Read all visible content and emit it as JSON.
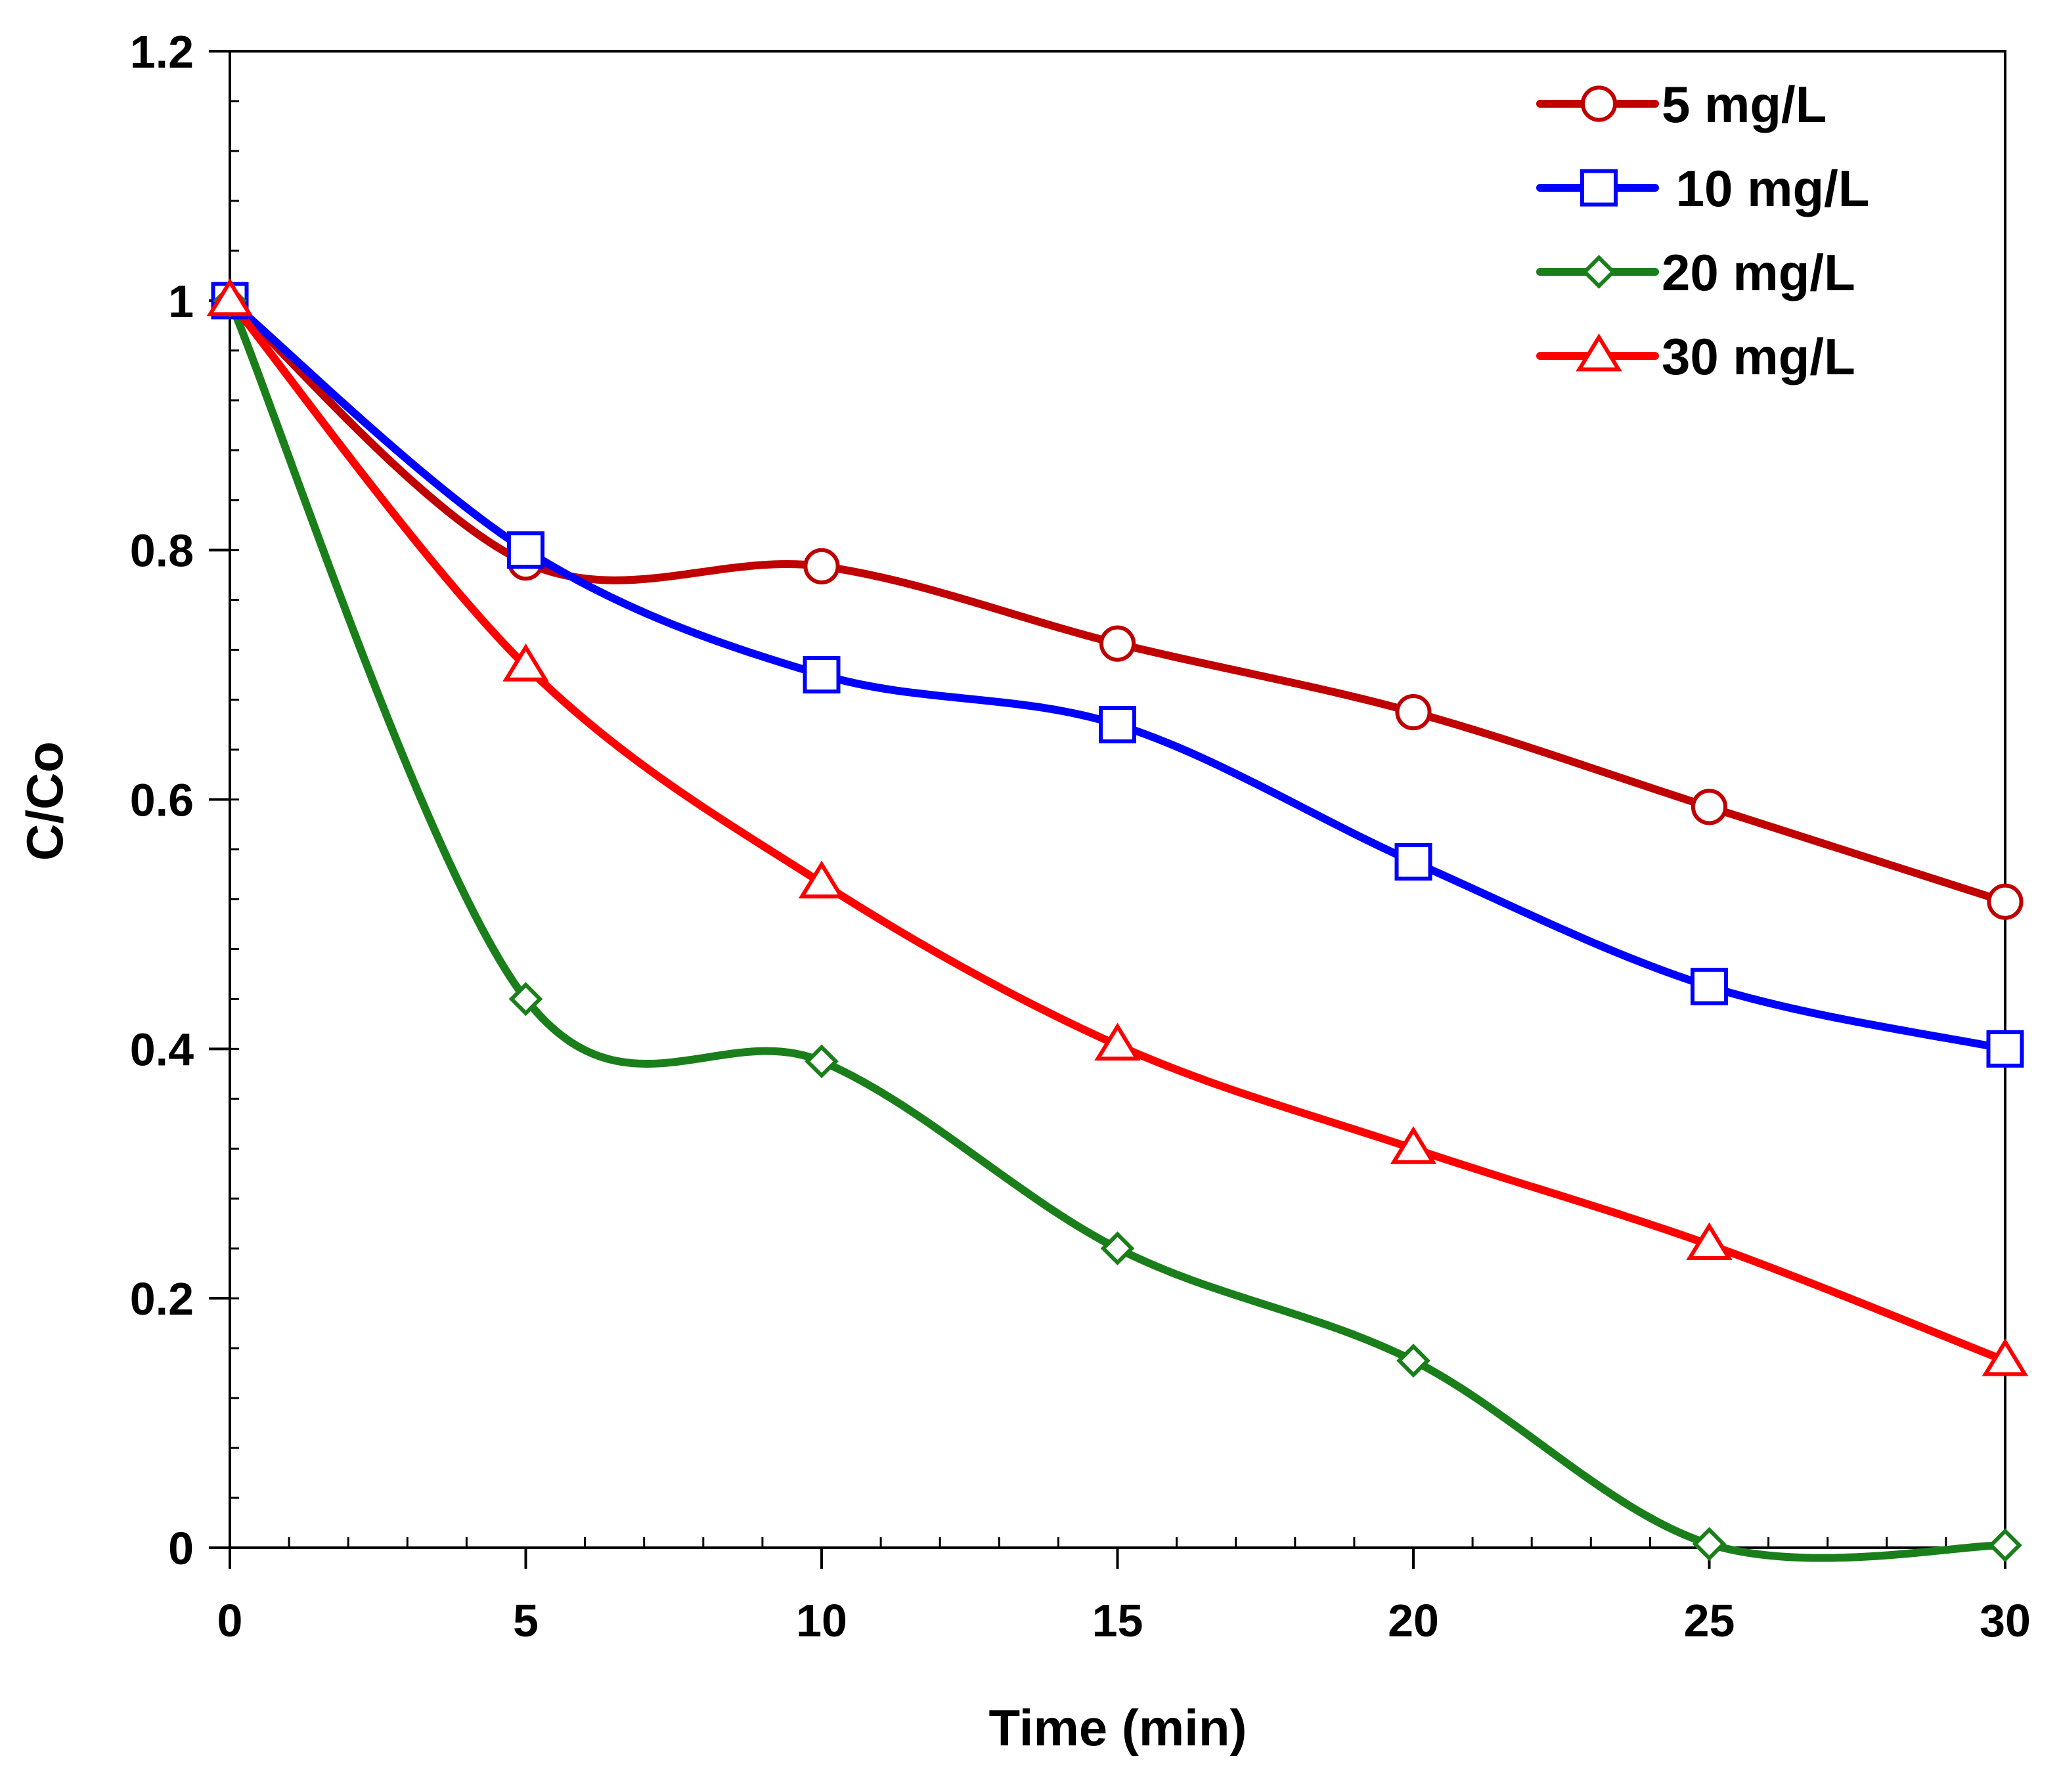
{
  "chart_data": {
    "type": "line",
    "title": "",
    "xlabel": "Time (min)",
    "ylabel": "C/Co",
    "xlim": [
      0,
      30
    ],
    "ylim": [
      0,
      1.2
    ],
    "x_ticks": [
      0,
      5,
      10,
      15,
      20,
      25,
      30
    ],
    "x_tick_labels": [
      "0",
      "5",
      "10",
      "15",
      "20",
      "25",
      "30"
    ],
    "y_ticks": [
      0,
      0.2,
      0.4,
      0.6,
      0.8,
      1,
      1.2
    ],
    "y_tick_labels": [
      "0",
      "0.2",
      "0.4",
      "0.6",
      "0.8",
      "1",
      "1.2"
    ],
    "x_minor_step": 1,
    "y_minor_step": 0.04,
    "grid": false,
    "legend_position": "top-right",
    "smooth": true,
    "x": [
      0,
      5,
      10,
      15,
      20,
      25,
      30
    ],
    "series": [
      {
        "name": "5 mg/L",
        "color": "#c00000",
        "marker": "circle",
        "values": [
          1.0,
          0.79,
          0.787,
          0.725,
          0.67,
          0.594,
          0.518
        ]
      },
      {
        "name": " 10 mg/L",
        "color": "#0000ff",
        "marker": "square",
        "values": [
          1.0,
          0.8,
          0.7,
          0.66,
          0.55,
          0.45,
          0.4
        ]
      },
      {
        "name": "20 mg/L",
        "color": "#1a7f1a",
        "marker": "diamond",
        "values": [
          1.0,
          0.44,
          0.39,
          0.24,
          0.15,
          0.003,
          0.002
        ]
      },
      {
        "name": "30 mg/L",
        "color": "#ff0000",
        "marker": "triangle",
        "values": [
          1.0,
          0.707,
          0.533,
          0.403,
          0.32,
          0.243,
          0.15
        ]
      }
    ]
  }
}
